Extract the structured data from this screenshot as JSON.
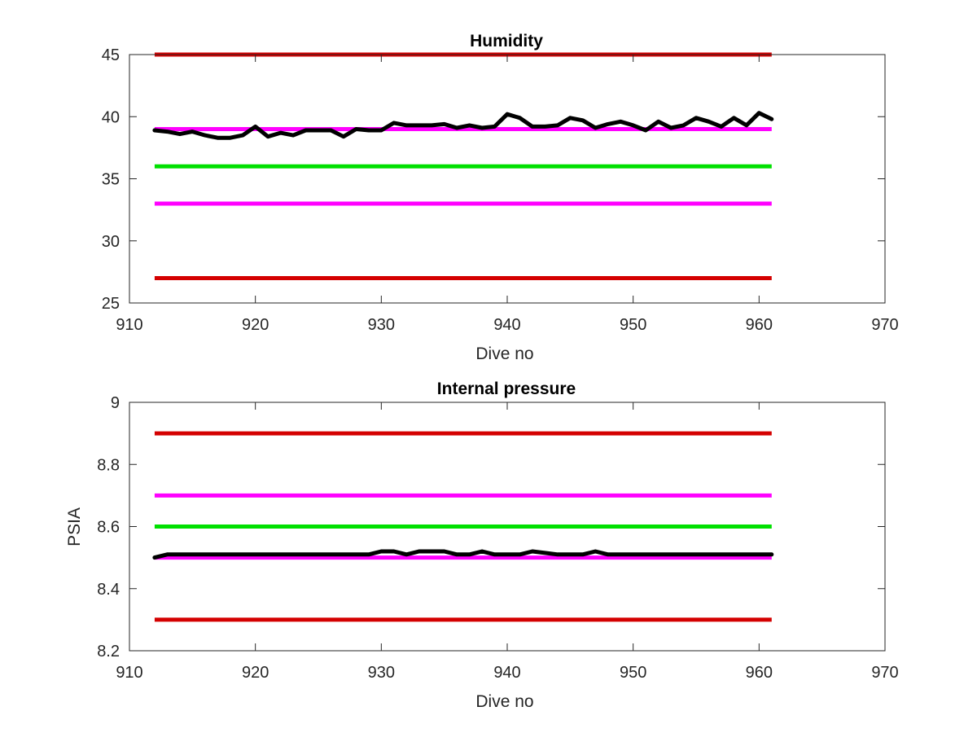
{
  "chart_data": [
    {
      "type": "line",
      "title": "Humidity",
      "xlabel": "Dive no",
      "ylabel": "",
      "xlim": [
        910,
        970
      ],
      "ylim": [
        25,
        45
      ],
      "xticks": [
        910,
        920,
        930,
        940,
        950,
        960,
        970
      ],
      "yticks": [
        25,
        30,
        35,
        40,
        45
      ],
      "xtick_labels": [
        "910",
        "920",
        "930",
        "940",
        "950",
        "960",
        "970"
      ],
      "ytick_labels": [
        "25",
        "30",
        "35",
        "40",
        "45"
      ],
      "grid": false,
      "reference_lines": [
        {
          "y": 45,
          "x": [
            912,
            961
          ],
          "color": "#d40000"
        },
        {
          "y": 39,
          "x": [
            912,
            961
          ],
          "color": "#ff00ff"
        },
        {
          "y": 36,
          "x": [
            912,
            961
          ],
          "color": "#00e000"
        },
        {
          "y": 33,
          "x": [
            912,
            961
          ],
          "color": "#ff00ff"
        },
        {
          "y": 27,
          "x": [
            912,
            961
          ],
          "color": "#d40000"
        }
      ],
      "series": [
        {
          "color": "#000000",
          "x": [
            912,
            913,
            914,
            915,
            916,
            917,
            918,
            919,
            920,
            921,
            922,
            923,
            924,
            925,
            926,
            927,
            928,
            929,
            930,
            931,
            932,
            933,
            934,
            935,
            936,
            937,
            938,
            939,
            940,
            941,
            942,
            943,
            944,
            945,
            946,
            947,
            948,
            949,
            950,
            951,
            952,
            953,
            954,
            955,
            956,
            957,
            958,
            959,
            960,
            961
          ],
          "y": [
            38.9,
            38.8,
            38.6,
            38.8,
            38.5,
            38.3,
            38.3,
            38.5,
            39.2,
            38.4,
            38.7,
            38.5,
            38.9,
            38.9,
            38.9,
            38.4,
            39.0,
            38.9,
            38.9,
            39.5,
            39.3,
            39.3,
            39.3,
            39.4,
            39.1,
            39.3,
            39.1,
            39.2,
            40.2,
            39.9,
            39.2,
            39.2,
            39.3,
            39.9,
            39.7,
            39.1,
            39.4,
            39.6,
            39.3,
            38.9,
            39.6,
            39.1,
            39.3,
            39.9,
            39.6,
            39.2,
            39.9,
            39.3,
            40.3,
            39.8
          ]
        }
      ]
    },
    {
      "type": "line",
      "title": "Internal pressure",
      "xlabel": "Dive no",
      "ylabel": "PSIA",
      "xlim": [
        910,
        970
      ],
      "ylim": [
        8.2,
        9
      ],
      "xticks": [
        910,
        920,
        930,
        940,
        950,
        960,
        970
      ],
      "yticks": [
        8.2,
        8.4,
        8.6,
        8.8,
        9
      ],
      "xtick_labels": [
        "910",
        "920",
        "930",
        "940",
        "950",
        "960",
        "970"
      ],
      "ytick_labels": [
        "8.2",
        "8.4",
        "8.6",
        "8.8",
        "9"
      ],
      "grid": false,
      "reference_lines": [
        {
          "y": 8.9,
          "x": [
            912,
            961
          ],
          "color": "#d40000"
        },
        {
          "y": 8.7,
          "x": [
            912,
            961
          ],
          "color": "#ff00ff"
        },
        {
          "y": 8.6,
          "x": [
            912,
            961
          ],
          "color": "#00e000"
        },
        {
          "y": 8.5,
          "x": [
            912,
            961
          ],
          "color": "#ff00ff"
        },
        {
          "y": 8.3,
          "x": [
            912,
            961
          ],
          "color": "#d40000"
        }
      ],
      "series": [
        {
          "color": "#000000",
          "x": [
            912,
            913,
            914,
            915,
            916,
            917,
            918,
            919,
            920,
            921,
            922,
            923,
            924,
            925,
            926,
            927,
            928,
            929,
            930,
            931,
            932,
            933,
            934,
            935,
            936,
            937,
            938,
            939,
            940,
            941,
            942,
            943,
            944,
            945,
            946,
            947,
            948,
            949,
            950,
            951,
            952,
            953,
            954,
            955,
            956,
            957,
            958,
            959,
            960,
            961
          ],
          "y": [
            8.5,
            8.51,
            8.51,
            8.51,
            8.51,
            8.51,
            8.51,
            8.51,
            8.51,
            8.51,
            8.51,
            8.51,
            8.51,
            8.51,
            8.51,
            8.51,
            8.51,
            8.51,
            8.52,
            8.52,
            8.51,
            8.52,
            8.52,
            8.52,
            8.51,
            8.51,
            8.52,
            8.51,
            8.51,
            8.51,
            8.52,
            8.515,
            8.51,
            8.51,
            8.51,
            8.52,
            8.51,
            8.51,
            8.51,
            8.51,
            8.51,
            8.51,
            8.51,
            8.51,
            8.51,
            8.51,
            8.51,
            8.51,
            8.51,
            8.51
          ]
        }
      ]
    }
  ]
}
